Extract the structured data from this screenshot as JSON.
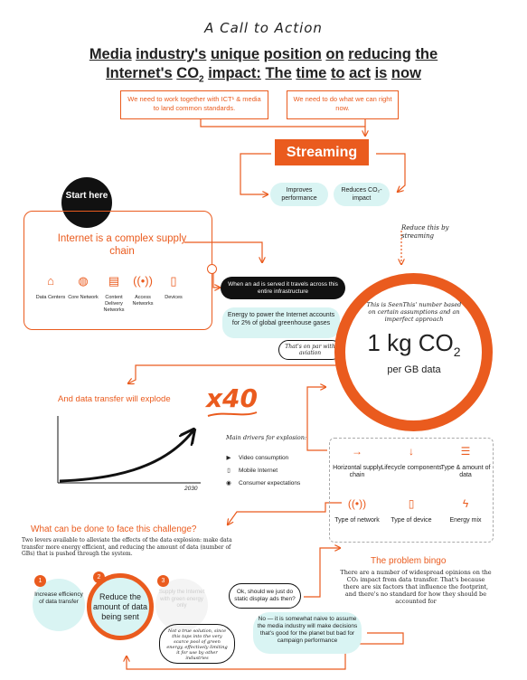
{
  "kicker": "A Call to Action",
  "headline": {
    "line1": [
      "Media",
      "industry's",
      "unique",
      "position",
      "on",
      "reducing",
      "the"
    ],
    "line2_pre": [
      "Internet's",
      "CO"
    ],
    "line2_sub": "2",
    "line2_post": [
      "impact:",
      "The",
      "time",
      "to",
      "act",
      "is",
      "now"
    ]
  },
  "top_boxes": {
    "left": "We need to work together with ICT¹ & media to land common standards.",
    "right": "We need to do what we can right now."
  },
  "streaming": {
    "label": "Streaming",
    "improves": "Improves performance",
    "reduces": "Reduces CO₂-impact",
    "reduce_note": "Reduce this by streaming"
  },
  "start": "Start here",
  "supply_chain": {
    "title": "Internet is a complex supply chain",
    "items": [
      {
        "icon": "datacenter-icon",
        "glyph": "⌂",
        "label": "Data Centers"
      },
      {
        "icon": "globe-icon",
        "glyph": "◍",
        "label": "Core Network"
      },
      {
        "icon": "box-icon",
        "glyph": "▤",
        "label": "Content Delivery Networks"
      },
      {
        "icon": "antenna-icon",
        "glyph": "((•))",
        "label": "Access Networks"
      },
      {
        "icon": "device-icon",
        "glyph": "▯",
        "label": "Devices"
      }
    ]
  },
  "ad_served": "When an ad is served it travels across this entire infrastructure",
  "energy": "Energy to power the Internet accounts for 2% of global greenhouse gases",
  "par_note": "That's on par with aviation",
  "ring": {
    "note": "This is SeenThis' number based on certain assumptions and an imperfect approach",
    "value": "1 kg CO",
    "value_sub": "2",
    "unit": "per GB data"
  },
  "explode": {
    "text": "And data transfer will explode",
    "multiplier": "x40",
    "year": "2030"
  },
  "drivers": {
    "heading": "Main drivers for explosion:",
    "items": [
      {
        "icon": "video-icon",
        "glyph": "▶",
        "label": "Video consumption"
      },
      {
        "icon": "mobile-icon",
        "glyph": "▯",
        "label": "Mobile Internet"
      },
      {
        "icon": "eye-icon",
        "glyph": "◉",
        "label": "Consumer expectations"
      }
    ]
  },
  "problems": [
    {
      "icon": "arrow-right-icon",
      "glyph": "→",
      "label": "Horizontal supply chain"
    },
    {
      "icon": "arrow-down-icon",
      "glyph": "↓",
      "label": "Lifecycle components"
    },
    {
      "icon": "server-icon",
      "glyph": "☰",
      "label": "Type & amount of data"
    },
    {
      "icon": "antenna-icon",
      "glyph": "((•))",
      "label": "Type of network"
    },
    {
      "icon": "phone-icon",
      "glyph": "▯",
      "label": "Type of device"
    },
    {
      "icon": "bolt-icon",
      "glyph": "ϟ",
      "label": "Energy mix"
    }
  ],
  "challenge": {
    "heading": "What can be done to face this challenge?",
    "body": "Two levers available to alleviate the effects of the data explosion: make data transfer more energy efficient, and reducing the amount of data (number of GBs) that is pushed through the system."
  },
  "levers": [
    {
      "num": "1",
      "label": "Increase efficiency of data transfer"
    },
    {
      "num": "2",
      "label": "Reduce the amount of data being sent"
    },
    {
      "num": "3",
      "label": "Supply the Internet with green energy only"
    }
  ],
  "green_note": "Not a true solution, since this taps into the very scarce pool of green energy, effectively limiting it for use by other industries",
  "ok_bubble": "Ok, should we just do static display ads then?",
  "no_bubble": "No — it is somewhat naive to assume the media industry will make decisions that's good for the planet but bad for campaign performance",
  "bingo": {
    "heading": "The problem bingo",
    "body": "There are a number of widespread opinions on the CO₂ impact from data transfer. That's because there are six factors that influence the footprint, and there's no standard for how they should be accounted for"
  },
  "colors": {
    "accent": "#ea5b1e",
    "teal": "#d9f4f3",
    "dark": "#111111"
  }
}
